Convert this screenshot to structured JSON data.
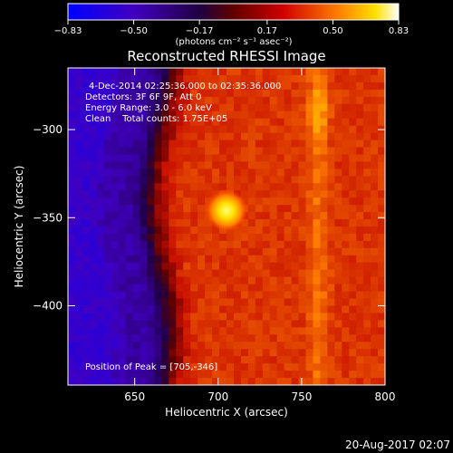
{
  "chart_data": {
    "type": "heatmap",
    "title": "Reconstructed RHESSI Image",
    "xlabel": "Heliocentric X (arcsec)",
    "ylabel": "Heliocentric Y (arcsec)",
    "xlim": [
      610,
      800
    ],
    "ylim": [
      -445,
      -265
    ],
    "x_ticks": [
      650,
      700,
      750,
      800
    ],
    "y_ticks": [
      -300,
      -350,
      -400
    ],
    "x_tick_labels": [
      "650",
      "700",
      "750",
      "800"
    ],
    "y_tick_labels": [
      "−300",
      "−350",
      "−400"
    ],
    "colorbar": {
      "colormap": "IDL color table 3 (hot) extended to blue",
      "range": [
        -0.83,
        0.83
      ],
      "tick_values": [
        -0.83,
        -0.5,
        -0.17,
        0.17,
        0.5,
        0.83
      ],
      "tick_labels": [
        "−0.83",
        "−0.50",
        "−0.17",
        "0.17",
        "0.50",
        "0.83"
      ],
      "unit_label": "(photons cm⁻² s⁻¹ asec⁻²)"
    },
    "annotations": {
      "time_range": "4-Dec-2014 02:25:36.000 to 02:35:36.000",
      "detectors": "Detectors: 3F 6F 9F, Att 0",
      "energy_range": "Energy Range: 3.0 - 6.0 keV",
      "clean_line": "Clean    Total counts: 1.75E+05",
      "peak_position": "Position of Peak = [705,-346]"
    },
    "peak": {
      "x": 705,
      "y": -346,
      "value": 0.83
    },
    "background_level": 0.3,
    "limb_x": 655,
    "offdisk_level": -0.55
  },
  "footer": {
    "date": "20-Aug-2017 02:07"
  }
}
